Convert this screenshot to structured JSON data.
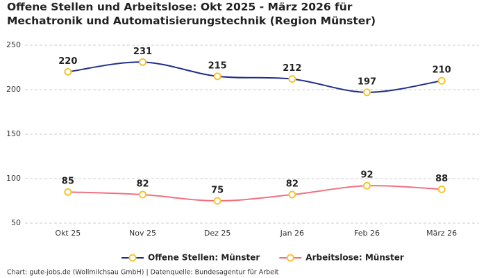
{
  "chart_data": {
    "type": "line",
    "title": "Offene Stellen und Arbeitslose: Okt 2025 - März 2026 für Mechatronik und Automatisierungstechnik (Region Münster)",
    "categories": [
      "Okt 25",
      "Nov 25",
      "Dez 25",
      "Jan 26",
      "Feb 26",
      "März 26"
    ],
    "series": [
      {
        "name": "Offene Stellen: Münster",
        "color": "#1f2d8a",
        "values": [
          220,
          231,
          215,
          212,
          197,
          210
        ]
      },
      {
        "name": "Arbeitslose: Münster",
        "color": "#f2707f",
        "values": [
          85,
          82,
          75,
          82,
          92,
          88
        ]
      }
    ],
    "marker_color": "#f5c431",
    "ylim": [
      50,
      250
    ],
    "yticks": [
      50,
      100,
      150,
      200,
      250
    ],
    "grid": true,
    "legend": "bottom",
    "source": "Chart: gute-jobs.de (Wollmilchsau GmbH) | Datenquelle: Bundesagentur für Arbeit"
  }
}
